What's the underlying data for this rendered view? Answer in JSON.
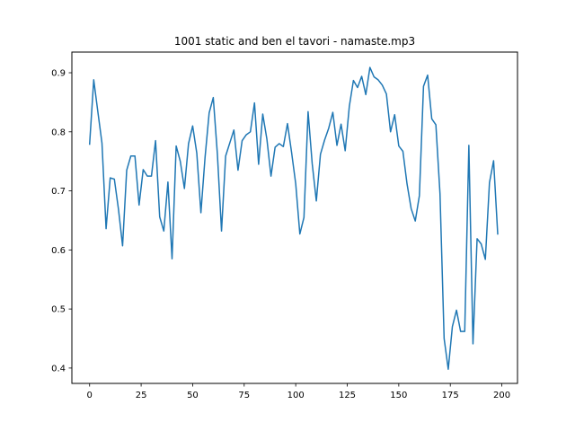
{
  "chart_data": {
    "type": "line",
    "title": "1001 static and ben el tavori - namaste.mp3",
    "xlabel": "",
    "ylabel": "",
    "xlim": [
      -8.6,
      207.6
    ],
    "ylim": [
      0.374,
      0.935
    ],
    "xticks": [
      0,
      25,
      50,
      75,
      100,
      125,
      150,
      175,
      200
    ],
    "yticks": [
      0.4,
      0.5,
      0.6,
      0.7,
      0.8,
      0.9
    ],
    "ytick_labels": [
      "0.4",
      "0.5",
      "0.6",
      "0.7",
      "0.8",
      "0.9"
    ],
    "grid": false,
    "legend": "none",
    "series": [
      {
        "color": "#1f77b4",
        "x": [
          0,
          2,
          4,
          6,
          8,
          10,
          12,
          14,
          16,
          18,
          20,
          22,
          24,
          26,
          28,
          30,
          32,
          34,
          36,
          38,
          40,
          42,
          44,
          46,
          48,
          50,
          52,
          54,
          56,
          58,
          60,
          62,
          64,
          66,
          68,
          70,
          72,
          74,
          76,
          78,
          80,
          82,
          84,
          86,
          88,
          90,
          92,
          94,
          96,
          98,
          100,
          102,
          104,
          106,
          108,
          110,
          112,
          114,
          116,
          118,
          120,
          122,
          124,
          126,
          128,
          130,
          132,
          134,
          136,
          138,
          140,
          142,
          144,
          146,
          148,
          150,
          152,
          154,
          156,
          158,
          160,
          162,
          164,
          166,
          168,
          170,
          172,
          174,
          176,
          178,
          180,
          182,
          184,
          186,
          188,
          190,
          192,
          194,
          196,
          198
        ],
        "y": [
          0.779,
          0.888,
          0.834,
          0.781,
          0.636,
          0.722,
          0.72,
          0.669,
          0.607,
          0.735,
          0.759,
          0.759,
          0.676,
          0.736,
          0.725,
          0.725,
          0.785,
          0.656,
          0.632,
          0.715,
          0.585,
          0.776,
          0.75,
          0.704,
          0.78,
          0.81,
          0.764,
          0.663,
          0.756,
          0.832,
          0.858,
          0.762,
          0.632,
          0.759,
          0.781,
          0.803,
          0.735,
          0.785,
          0.795,
          0.8,
          0.849,
          0.745,
          0.83,
          0.788,
          0.725,
          0.774,
          0.78,
          0.775,
          0.814,
          0.765,
          0.712,
          0.627,
          0.655,
          0.834,
          0.746,
          0.683,
          0.762,
          0.786,
          0.806,
          0.833,
          0.777,
          0.813,
          0.768,
          0.843,
          0.887,
          0.875,
          0.894,
          0.863,
          0.909,
          0.893,
          0.888,
          0.879,
          0.864,
          0.8,
          0.829,
          0.776,
          0.767,
          0.712,
          0.67,
          0.649,
          0.692,
          0.877,
          0.896,
          0.822,
          0.812,
          0.695,
          0.45,
          0.398,
          0.47,
          0.498,
          0.462,
          0.462,
          0.777,
          0.441,
          0.619,
          0.61,
          0.584,
          0.714,
          0.751,
          0.627
        ]
      }
    ]
  }
}
